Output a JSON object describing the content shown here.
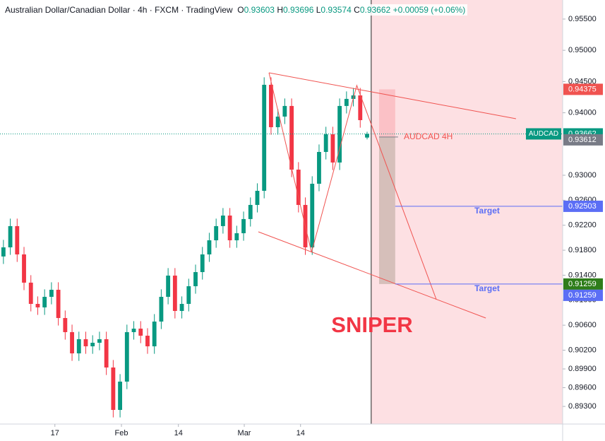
{
  "chart_data": {
    "type": "candlestick",
    "header": {
      "symbol": "Australian Dollar/Canadian Dollar · 4h · FXCM · TradingView",
      "o": "O",
      "h": "H",
      "l": "L",
      "c": "C",
      "change": "+0.00059 (+0.06%)"
    },
    "open": [
      0.917,
      0.91846,
      0.92186,
      0.91733,
      0.91281,
      0.90941,
      0.90885,
      0.91054,
      0.91167,
      0.90715,
      0.90489,
      0.90149,
      0.90376,
      0.90262,
      0.90319,
      0.90376,
      0.89923,
      0.89244,
      0.89697,
      0.90489,
      0.90545,
      0.90432,
      0.90262,
      0.90658,
      0.91054,
      0.91394,
      0.90828,
      0.90941,
      0.91224,
      0.9145,
      0.91733,
      0.91959,
      0.92186,
      0.92355,
      0.91959,
      0.92072,
      0.92299,
      0.92525,
      0.92751,
      0.94448,
      0.93769,
      0.93939,
      0.94109,
      0.9309,
      0.92525,
      0.91846,
      0.92864,
      0.93373,
      0.93656,
      0.93204,
      0.94109,
      0.94222,
      0.94278,
      0.93603
    ],
    "high": [
      0.91966,
      0.92306,
      0.92306,
      0.91853,
      0.91401,
      0.91061,
      0.91174,
      0.91287,
      0.91287,
      0.90835,
      0.90609,
      0.90496,
      0.90496,
      0.90439,
      0.90496,
      0.90496,
      0.90043,
      0.89817,
      0.90609,
      0.90665,
      0.90665,
      0.90552,
      0.90778,
      0.91174,
      0.91514,
      0.91514,
      0.91061,
      0.91344,
      0.9157,
      0.91853,
      0.92079,
      0.92306,
      0.92475,
      0.92475,
      0.92192,
      0.92419,
      0.92645,
      0.92871,
      0.94568,
      0.94568,
      0.94059,
      0.94229,
      0.94229,
      0.9321,
      0.92645,
      0.92984,
      0.93493,
      0.93776,
      0.93776,
      0.94229,
      0.94342,
      0.94398,
      0.94398,
      0.93696
    ],
    "low": [
      0.9158,
      0.91726,
      0.91613,
      0.91161,
      0.90821,
      0.90765,
      0.90765,
      0.90934,
      0.90595,
      0.90369,
      0.90029,
      0.90029,
      0.90142,
      0.90142,
      0.90199,
      0.89803,
      0.89124,
      0.89124,
      0.89577,
      0.90369,
      0.90312,
      0.90142,
      0.90142,
      0.90538,
      0.90934,
      0.90708,
      0.90708,
      0.90821,
      0.91104,
      0.9133,
      0.91613,
      0.91839,
      0.92066,
      0.91839,
      0.91839,
      0.91952,
      0.92179,
      0.92405,
      0.92631,
      0.93649,
      0.93649,
      0.93819,
      0.9297,
      0.92405,
      0.91726,
      0.91726,
      0.92744,
      0.93253,
      0.93084,
      0.93084,
      0.93989,
      0.94102,
      0.93762,
      0.93574
    ],
    "close": [
      0.91846,
      0.92186,
      0.91733,
      0.91281,
      0.90941,
      0.90885,
      0.91054,
      0.91167,
      0.90715,
      0.90489,
      0.90149,
      0.90376,
      0.90262,
      0.90319,
      0.90376,
      0.89923,
      0.89244,
      0.89697,
      0.90489,
      0.90545,
      0.90432,
      0.90262,
      0.90658,
      0.91054,
      0.91394,
      0.90828,
      0.90941,
      0.91224,
      0.9145,
      0.91733,
      0.91959,
      0.92186,
      0.92355,
      0.91959,
      0.92072,
      0.92299,
      0.92525,
      0.92751,
      0.94448,
      0.93769,
      0.93939,
      0.94109,
      0.9309,
      0.92525,
      0.91846,
      0.92864,
      0.93373,
      0.93656,
      0.93204,
      0.94109,
      0.94222,
      0.94278,
      0.93882,
      0.93662
    ],
    "up_color": "#089981",
    "down_color": "#f23645",
    "last_name": "AUDCAD",
    "last_color": "#089981",
    "xlim": [
      -0.5,
      81.5
    ],
    "xticks": [
      {
        "value": 7.5,
        "label": "17"
      },
      {
        "value": 17.2,
        "label": "Feb"
      },
      {
        "value": 25.5,
        "label": "14"
      },
      {
        "value": 35.1,
        "label": "Mar"
      },
      {
        "value": 43.3,
        "label": "14"
      }
    ],
    "ylim": [
      0.89018,
      0.95805
    ],
    "yticks": [
      {
        "value": 0.955,
        "label": "0.95500"
      },
      {
        "value": 0.95,
        "label": "0.95000"
      },
      {
        "value": 0.945,
        "label": "0.94500"
      },
      {
        "value": 0.94,
        "label": "0.94000"
      },
      {
        "value": 0.93,
        "label": "0.93000"
      },
      {
        "value": 0.926,
        "label": "0.92600"
      },
      {
        "value": 0.922,
        "label": "0.92200"
      },
      {
        "value": 0.918,
        "label": "0.91800"
      },
      {
        "value": 0.914,
        "label": "0.91400"
      },
      {
        "value": 0.91,
        "label": "0.91000"
      },
      {
        "value": 0.906,
        "label": "0.90600"
      },
      {
        "value": 0.902,
        "label": "0.90200"
      },
      {
        "value": 0.899,
        "label": "0.89900"
      },
      {
        "value": 0.896,
        "label": "0.89600"
      },
      {
        "value": 0.893,
        "label": "0.89300"
      }
    ],
    "grid": false,
    "projection_start": 53.6,
    "projection_color": "#fde0e3",
    "trendlines": [
      {
        "color": "#f05350",
        "points": [
          [
            38.7,
            0.9464
          ],
          [
            74.7,
            0.93905
          ]
        ]
      },
      {
        "color": "#f05350",
        "points": [
          [
            37.15,
            0.92095
          ],
          [
            70.3,
            0.90715
          ]
        ]
      },
      {
        "color": "#f05350",
        "points": [
          [
            38.7,
            0.9464
          ],
          [
            44.9,
            0.91767
          ],
          [
            51.5,
            0.94437
          ],
          [
            63.1,
            0.91009
          ]
        ]
      }
    ],
    "position": {
      "x": [
        54.75,
        57.1
      ],
      "stop": 0.94375,
      "entry": 0.93612,
      "target": 0.91259,
      "stop_color": "#f05350",
      "entry_color": "#787b86",
      "target_color": "#2e7d1a"
    },
    "targets": [
      {
        "label": "Target",
        "value": 0.92503,
        "start": 57.1,
        "color": "#5b6ef5"
      },
      {
        "label": "Target",
        "value": 0.91259,
        "start": 57.1,
        "color": "#5b6ef5"
      }
    ],
    "annotations": [
      {
        "text": "AUDCAD 4H",
        "color": "#f05350"
      },
      {
        "text": "SNIPER",
        "color": "#f23645"
      }
    ]
  }
}
